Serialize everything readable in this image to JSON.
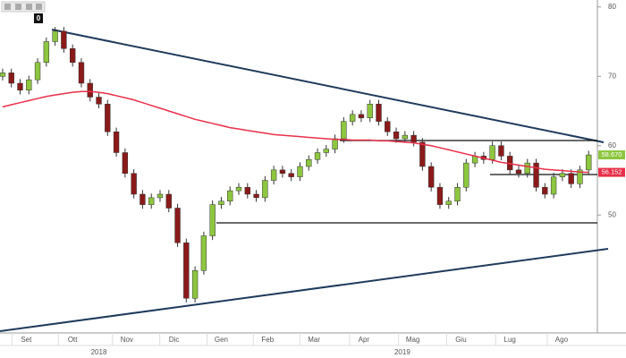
{
  "toolbar_badge": "0",
  "chart_data": {
    "type": "candlestick",
    "up_color": "#8dc63f",
    "down_color": "#8b1a1a",
    "xlim": [
      -0.3,
      68
    ],
    "ylim": [
      33,
      81
    ],
    "yticks": [
      50,
      60,
      70,
      80
    ],
    "xticks": [
      {
        "value": 2.7,
        "label": "Set"
      },
      {
        "value": 8,
        "label": "Ott"
      },
      {
        "value": 14.2,
        "label": "Nov"
      },
      {
        "value": 19.6,
        "label": "Dic"
      },
      {
        "value": 25,
        "label": "Gen"
      },
      {
        "value": 30.3,
        "label": "Feb"
      },
      {
        "value": 35.6,
        "label": "Mar"
      },
      {
        "value": 41.3,
        "label": "Apr"
      },
      {
        "value": 46.9,
        "label": "Mag"
      },
      {
        "value": 52.4,
        "label": "Giu"
      },
      {
        "value": 58,
        "label": "Lug"
      },
      {
        "value": 63.9,
        "label": "Ago"
      }
    ],
    "year_ticks": [
      {
        "value": 11,
        "label": "2018"
      },
      {
        "value": 45.7,
        "label": "2019"
      }
    ],
    "open": [
      70,
      70.5,
      69,
      68,
      69.5,
      72,
      75,
      76.5,
      74,
      72,
      69,
      67,
      66,
      62,
      59,
      56,
      53,
      51.5,
      52.5,
      53,
      51,
      46,
      38,
      42,
      47,
      51.5,
      52,
      53.5,
      54,
      53,
      52.5,
      55,
      56.5,
      56,
      55.5,
      57,
      58,
      59,
      59.5,
      61,
      63.5,
      64.5,
      64,
      66,
      63.5,
      62,
      61,
      61.5,
      60.5,
      57,
      54,
      51.5,
      52,
      54,
      57.5,
      58.5,
      58,
      60,
      58.5,
      56.5,
      56,
      57.5,
      54,
      53,
      55.5,
      56,
      54.5,
      56.5
    ],
    "high": [
      71.1,
      71.1,
      69.6,
      70.1,
      72.6,
      75.6,
      77.1,
      77.1,
      74.6,
      72.6,
      69.6,
      67.6,
      66.6,
      62.6,
      59.6,
      56.6,
      53.6,
      53.1,
      53.6,
      53.6,
      51.6,
      46.6,
      42.6,
      47.6,
      52.1,
      52.6,
      54.1,
      54.6,
      54.6,
      53.6,
      55.6,
      57.1,
      57.1,
      56.6,
      57.6,
      58.6,
      59.6,
      60.1,
      61.6,
      64.1,
      65.1,
      65.1,
      66.6,
      66.6,
      64.1,
      62.6,
      62.1,
      62.1,
      61.1,
      57.6,
      54.6,
      52.6,
      54.6,
      58.1,
      59.1,
      59.1,
      60.6,
      60.6,
      59.1,
      57.1,
      58.1,
      58.1,
      54.6,
      56.1,
      56.6,
      56.6,
      57.1,
      59.27
    ],
    "low": [
      69.4,
      68.4,
      67.4,
      67.4,
      68.9,
      71.4,
      74.4,
      73.4,
      71.4,
      68.4,
      66.4,
      65.4,
      61.4,
      58.4,
      55.4,
      52.4,
      50.9,
      50.9,
      51.9,
      50.4,
      45.4,
      37.4,
      37.4,
      41.4,
      46.4,
      50.9,
      51.4,
      52.9,
      52.4,
      51.9,
      51.9,
      54.4,
      55.4,
      54.9,
      54.9,
      56.4,
      57.4,
      58.4,
      58.9,
      60.4,
      62.9,
      63.4,
      63.4,
      62.9,
      61.4,
      60.4,
      60.4,
      59.9,
      56.4,
      53.4,
      50.9,
      50.9,
      51.4,
      53.4,
      56.9,
      57.4,
      57.4,
      57.9,
      55.9,
      55.4,
      55.4,
      53.4,
      52.4,
      52.4,
      54.9,
      53.9,
      53.9,
      55.9
    ],
    "close": [
      70.5,
      69,
      68,
      69.5,
      72,
      75,
      76.5,
      74,
      72,
      69,
      67,
      66,
      62,
      59,
      56,
      53,
      51.5,
      52.5,
      53,
      51,
      46,
      38,
      42,
      47,
      51.5,
      52,
      53.5,
      54,
      53,
      52.5,
      55,
      56.5,
      56,
      55.5,
      57,
      58,
      59,
      59.5,
      61,
      63.5,
      64.5,
      64,
      66,
      63.5,
      62,
      61,
      61.5,
      60.5,
      57,
      54,
      51.5,
      52,
      54,
      57.5,
      58.5,
      58,
      60,
      58.5,
      56.5,
      56,
      57.5,
      54,
      53,
      55.5,
      56,
      54.5,
      56.5,
      58.67
    ],
    "moving_average": {
      "color": "#e8304a",
      "values": [
        65.6,
        65.9,
        66.2,
        66.5,
        66.8,
        67.1,
        67.3,
        67.5,
        67.7,
        67.8,
        67.8,
        67.7,
        67.5,
        67.2,
        66.9,
        66.6,
        66.2,
        65.8,
        65.4,
        65.0,
        64.6,
        64.2,
        63.8,
        63.5,
        63.2,
        62.9,
        62.6,
        62.4,
        62.2,
        62.0,
        61.8,
        61.6,
        61.5,
        61.4,
        61.3,
        61.2,
        61.1,
        61.0,
        60.9,
        60.9,
        60.8,
        60.8,
        60.8,
        60.7,
        60.7,
        60.6,
        60.5,
        60.4,
        60.2,
        60.0,
        59.7,
        59.4,
        59.1,
        58.8,
        58.5,
        58.2,
        57.9,
        57.6,
        57.4,
        57.2,
        57.0,
        56.8,
        56.6,
        56.5,
        56.4,
        56.3,
        56.2,
        56.15
      ]
    },
    "price_labels": [
      {
        "value": 58.67,
        "label": "58.670",
        "color": "#8dc63f"
      },
      {
        "value": 56.152,
        "label": "56.152",
        "color": "#e8304a"
      }
    ]
  }
}
